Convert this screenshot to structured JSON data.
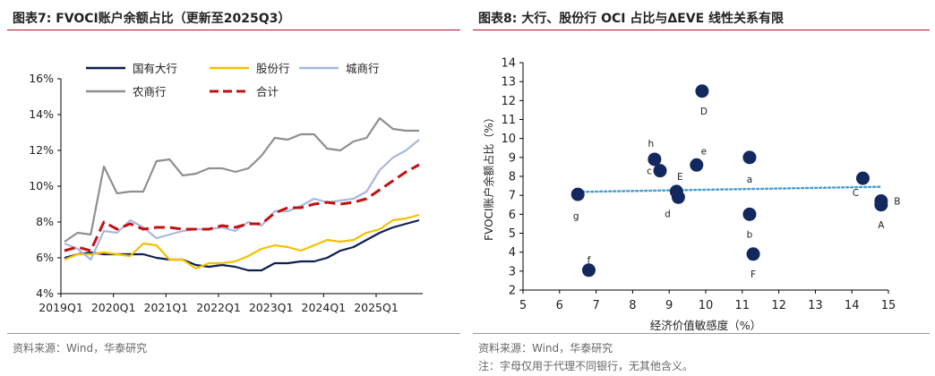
{
  "left_title": "图表7: FVOCI账户余额占比（更新至2025Q3）",
  "right_title": "图表8: 大行、股份行 OCI 占比与ΔEVE 线性关系有限",
  "left_source": "资料来源：Wind，华泰研究",
  "right_source": "资料来源：Wind，华泰研究",
  "right_note": "注：字母仅用于代理不同银行，无其他含义。",
  "chart_data": [
    {
      "type": "line",
      "title": "FVOCI账户余额占比（更新至2025Q3）",
      "xlabel": "",
      "ylabel": "",
      "ylim": [
        4,
        16
      ],
      "yticks": [
        "4%",
        "6%",
        "8%",
        "10%",
        "12%",
        "14%",
        "16%"
      ],
      "xticks": [
        "2019Q1",
        "2020Q1",
        "2021Q1",
        "2022Q1",
        "2023Q1",
        "2024Q1",
        "2025Q1"
      ],
      "legend_position": "top",
      "series": [
        {
          "name": "国有大行",
          "color": "#0d1f4f",
          "dash": "solid",
          "values": [
            6.0,
            6.2,
            6.3,
            6.2,
            6.2,
            6.2,
            6.2,
            6.0,
            5.9,
            5.9,
            5.6,
            5.5,
            5.6,
            5.5,
            5.3,
            5.3,
            5.7,
            5.7,
            5.8,
            5.8,
            6.0,
            6.4,
            6.6,
            7.0,
            7.4,
            7.7,
            7.9,
            8.1
          ]
        },
        {
          "name": "股份行",
          "color": "#f5c000",
          "dash": "solid",
          "values": [
            5.9,
            6.2,
            6.2,
            6.3,
            6.2,
            6.1,
            6.8,
            6.7,
            5.9,
            5.9,
            5.4,
            5.7,
            5.7,
            5.8,
            6.1,
            6.5,
            6.7,
            6.6,
            6.4,
            6.7,
            7.0,
            6.9,
            7.0,
            7.4,
            7.6,
            8.1,
            8.2,
            8.4
          ]
        },
        {
          "name": "城商行",
          "color": "#a8b8dc",
          "dash": "solid",
          "values": [
            6.8,
            6.5,
            5.9,
            7.5,
            7.4,
            8.1,
            7.7,
            7.1,
            7.3,
            7.5,
            7.6,
            7.6,
            7.7,
            7.5,
            8.0,
            7.8,
            8.6,
            8.6,
            8.9,
            9.3,
            9.1,
            9.2,
            9.3,
            9.7,
            10.9,
            11.6,
            12.0,
            12.6
          ]
        },
        {
          "name": "农商行",
          "color": "#8f8f8f",
          "dash": "solid",
          "values": [
            6.9,
            7.4,
            7.3,
            11.1,
            9.6,
            9.7,
            9.7,
            11.4,
            11.5,
            10.6,
            10.7,
            11.0,
            11.0,
            10.8,
            11.0,
            11.7,
            12.7,
            12.6,
            12.9,
            12.9,
            12.1,
            12.0,
            12.5,
            12.7,
            13.8,
            13.2,
            13.1,
            13.1
          ]
        },
        {
          "name": "合计",
          "color": "#c41010",
          "dash": "dashed",
          "values": [
            6.4,
            6.6,
            6.4,
            8.0,
            7.6,
            7.9,
            7.6,
            7.7,
            7.7,
            7.6,
            7.6,
            7.6,
            7.8,
            7.7,
            7.9,
            7.9,
            8.5,
            8.8,
            8.8,
            9.0,
            9.1,
            9.0,
            9.1,
            9.3,
            9.8,
            10.3,
            10.8,
            11.2
          ]
        }
      ]
    },
    {
      "type": "scatter",
      "title": "大行、股份行 OCI 占比与ΔEVE 线性关系有限",
      "xlabel": "经济价值敏感度（%）",
      "ylabel": "FVOCI账户余额占比（%）",
      "xlim": [
        5,
        15
      ],
      "ylim": [
        2,
        14
      ],
      "xticks": [
        "5",
        "6",
        "7",
        "8",
        "9",
        "10",
        "11",
        "12",
        "13",
        "14",
        "15"
      ],
      "yticks": [
        "2",
        "3",
        "4",
        "5",
        "6",
        "7",
        "8",
        "9",
        "10",
        "11",
        "12",
        "13",
        "14"
      ],
      "points": [
        {
          "label": "A",
          "x": 14.8,
          "y": 6.5
        },
        {
          "label": "B",
          "x": 14.8,
          "y": 6.7
        },
        {
          "label": "C",
          "x": 14.3,
          "y": 7.9
        },
        {
          "label": "D",
          "x": 9.9,
          "y": 12.5
        },
        {
          "label": "E",
          "x": 9.2,
          "y": 7.2
        },
        {
          "label": "F",
          "x": 11.3,
          "y": 3.9
        },
        {
          "label": "a",
          "x": 11.2,
          "y": 9.0
        },
        {
          "label": "b",
          "x": 11.2,
          "y": 6.0
        },
        {
          "label": "c",
          "x": 8.75,
          "y": 8.3
        },
        {
          "label": "d",
          "x": 9.25,
          "y": 6.9
        },
        {
          "label": "e",
          "x": 9.75,
          "y": 8.6
        },
        {
          "label": "f",
          "x": 6.8,
          "y": 3.05
        },
        {
          "label": "g",
          "x": 6.5,
          "y": 7.05
        },
        {
          "label": "h",
          "x": 8.6,
          "y": 8.9
        }
      ],
      "trendline": {
        "x": [
          6.5,
          14.8
        ],
        "y": [
          7.18,
          7.45
        ],
        "color": "#4a9fd0",
        "style": "dotted"
      },
      "point_color": "#13285e"
    }
  ]
}
